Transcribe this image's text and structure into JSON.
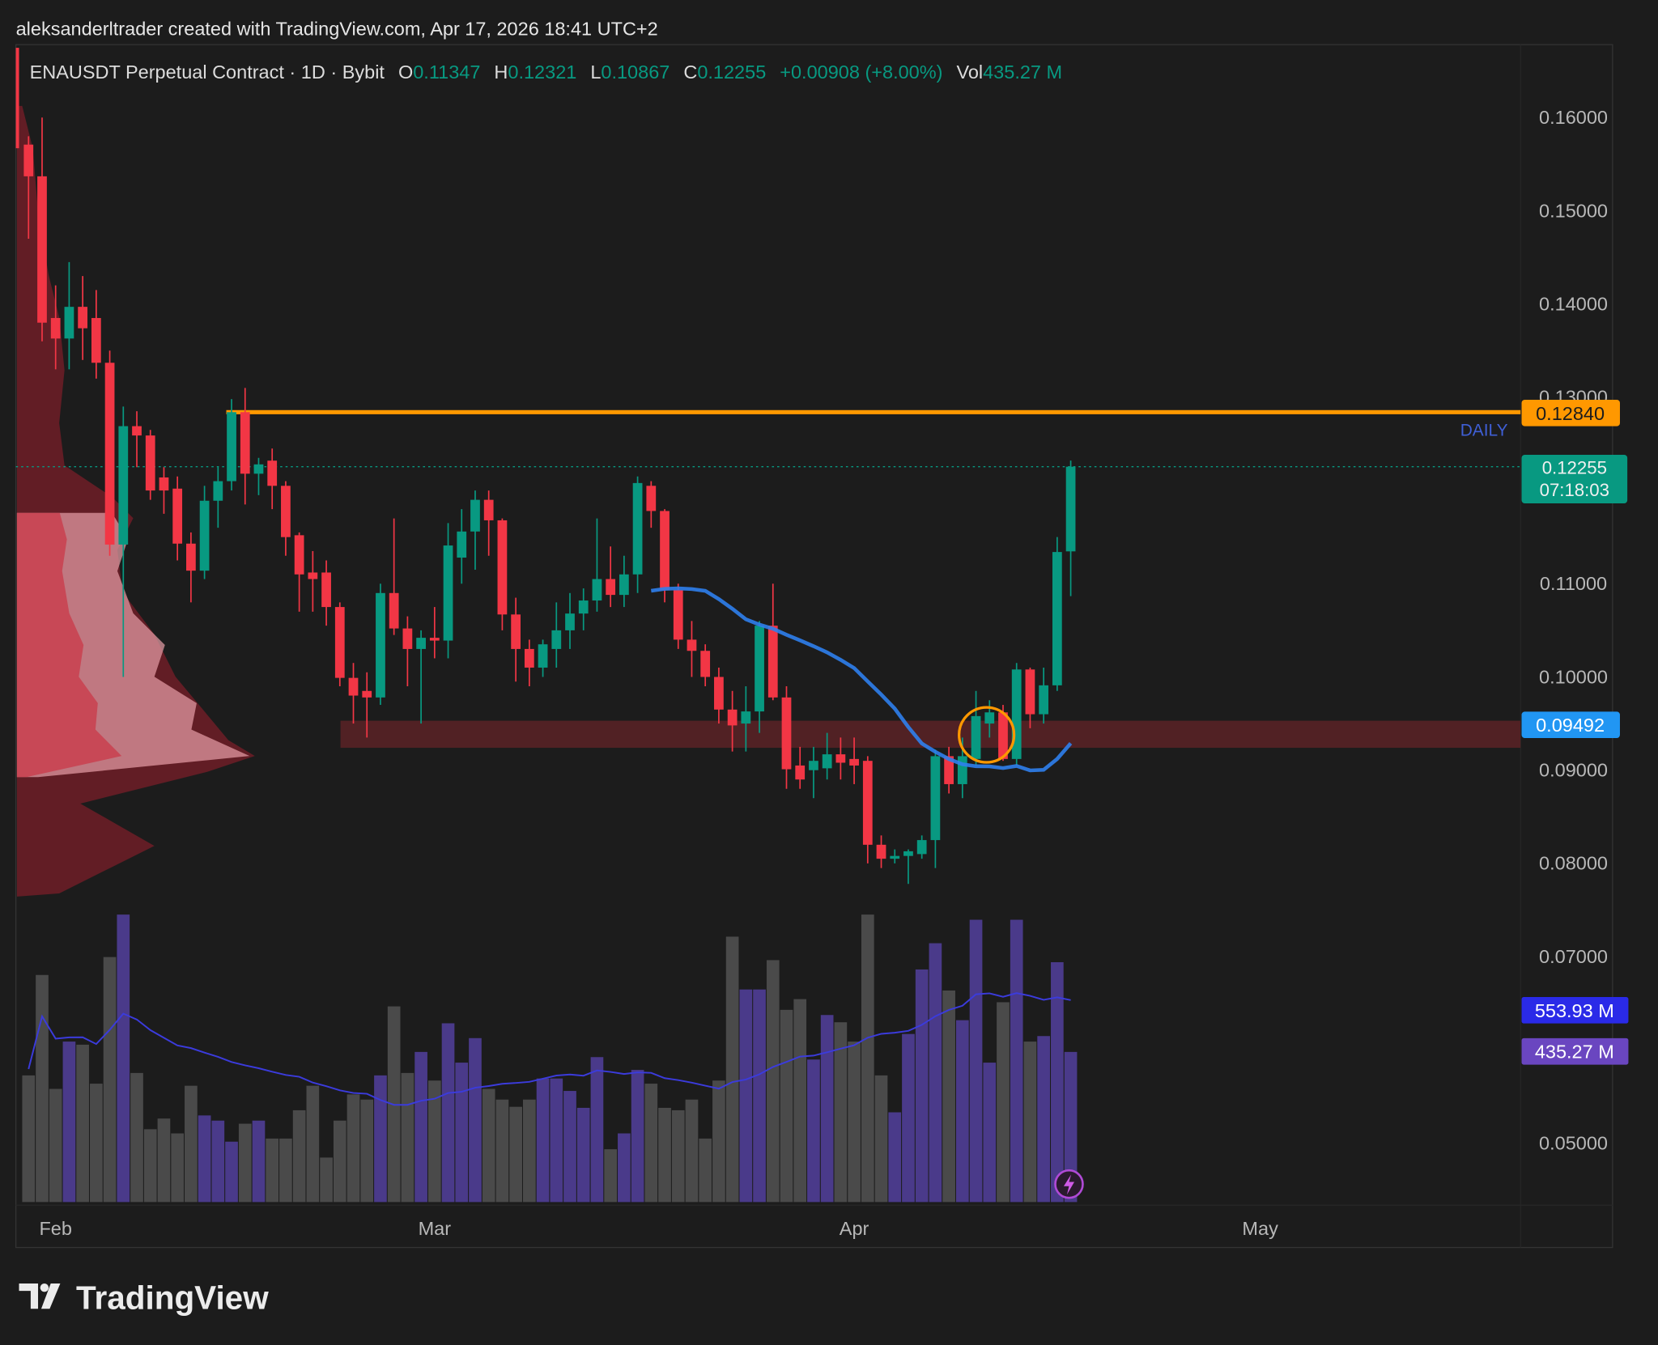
{
  "header": {
    "credit": "aleksanderltrader created with TradingView.com, Apr 17, 2026 18:41 UTC+2",
    "symbol": "ENAUSDT Perpetual Contract · 1D · Bybit",
    "o_label": "O",
    "o": "0.11347",
    "h_label": "H",
    "h": "0.12321",
    "l_label": "L",
    "l": "0.10867",
    "c_label": "C",
    "c": "0.12255",
    "change": "+0.00908 (+8.00%)",
    "vol_label": "Vol",
    "vol": "435.27 M"
  },
  "colors": {
    "up": "#089981",
    "down": "#f23645",
    "volume_up": "#4a3a8a",
    "volume_down": "#4a4a4a",
    "resistance": "#ff9800",
    "ma": "#2f80ed",
    "zone": "#5a2226",
    "volume_ma": "#3b3bdc"
  },
  "labels": {
    "resistance_price": "0.12840",
    "resistance_tag": "DAILY",
    "last_price": "0.12255",
    "countdown": "07:18:03",
    "ma_value": "0.09492",
    "volume_ma_value": "553.93 M",
    "volume_value": "435.27 M",
    "logo": "TradingView"
  },
  "chart_data": {
    "type": "candlestick",
    "price_ticks": [
      "0.16000",
      "0.15000",
      "0.14000",
      "0.13000",
      "0.11000",
      "0.10000",
      "0.09000",
      "0.08000",
      "0.07000",
      "0.05000"
    ],
    "price_tick_values": [
      0.16,
      0.15,
      0.14,
      0.13,
      0.11,
      0.1,
      0.09,
      0.08,
      0.07,
      0.05
    ],
    "time_ticks": [
      "Feb",
      "Mar",
      "Apr",
      "May"
    ],
    "time_tick_dates": [
      "2026-02-01",
      "2026-03-01",
      "2026-04-01",
      "2026-05-01"
    ],
    "first_date": "2026-01-30",
    "resistance_level": 0.1284,
    "support_zone": [
      0.0924,
      0.0953
    ],
    "ohlc": [
      [
        0.1571,
        0.158,
        0.147,
        0.1537
      ],
      [
        0.1537,
        0.16,
        0.136,
        0.138
      ],
      [
        0.1385,
        0.142,
        0.133,
        0.1363
      ],
      [
        0.1363,
        0.1445,
        0.133,
        0.1397
      ],
      [
        0.1397,
        0.143,
        0.134,
        0.1374
      ],
      [
        0.1385,
        0.1415,
        0.132,
        0.1337
      ],
      [
        0.1337,
        0.135,
        0.113,
        0.1142
      ],
      [
        0.1142,
        0.129,
        0.1,
        0.1269
      ],
      [
        0.1269,
        0.1285,
        0.1225,
        0.1259
      ],
      [
        0.1259,
        0.1265,
        0.119,
        0.12
      ],
      [
        0.1214,
        0.1225,
        0.1175,
        0.12
      ],
      [
        0.1202,
        0.1215,
        0.1125,
        0.1143
      ],
      [
        0.1143,
        0.1155,
        0.108,
        0.1114
      ],
      [
        0.1114,
        0.1205,
        0.1105,
        0.1189
      ],
      [
        0.1189,
        0.1225,
        0.116,
        0.121
      ],
      [
        0.121,
        0.1298,
        0.12,
        0.1284
      ],
      [
        0.1284,
        0.131,
        0.1185,
        0.1218
      ],
      [
        0.1218,
        0.1235,
        0.1195,
        0.1228
      ],
      [
        0.1232,
        0.1245,
        0.118,
        0.1205
      ],
      [
        0.1205,
        0.121,
        0.113,
        0.115
      ],
      [
        0.1152,
        0.1155,
        0.107,
        0.111
      ],
      [
        0.1112,
        0.1135,
        0.107,
        0.1105
      ],
      [
        0.1112,
        0.1125,
        0.1055,
        0.1075
      ],
      [
        0.1075,
        0.108,
        0.099,
        0.0999
      ],
      [
        0.0999,
        0.1015,
        0.095,
        0.098
      ],
      [
        0.0985,
        0.1005,
        0.0935,
        0.0978
      ],
      [
        0.0978,
        0.11,
        0.097,
        0.109
      ],
      [
        0.109,
        0.117,
        0.1045,
        0.1052
      ],
      [
        0.1052,
        0.1065,
        0.099,
        0.103
      ],
      [
        0.103,
        0.105,
        0.095,
        0.1042
      ],
      [
        0.1042,
        0.1075,
        0.102,
        0.1039
      ],
      [
        0.1039,
        0.1165,
        0.102,
        0.1141
      ],
      [
        0.1128,
        0.118,
        0.11,
        0.1156
      ],
      [
        0.1156,
        0.12,
        0.1115,
        0.119
      ],
      [
        0.119,
        0.12,
        0.113,
        0.1168
      ],
      [
        0.1168,
        0.117,
        0.105,
        0.1067
      ],
      [
        0.1067,
        0.1085,
        0.0995,
        0.103
      ],
      [
        0.103,
        0.104,
        0.099,
        0.101
      ],
      [
        0.101,
        0.104,
        0.1,
        0.1035
      ],
      [
        0.103,
        0.108,
        0.101,
        0.105
      ],
      [
        0.105,
        0.109,
        0.103,
        0.1068
      ],
      [
        0.1068,
        0.1095,
        0.105,
        0.1082
      ],
      [
        0.1082,
        0.117,
        0.107,
        0.1105
      ],
      [
        0.1105,
        0.114,
        0.1075,
        0.1088
      ],
      [
        0.1088,
        0.113,
        0.1075,
        0.111
      ],
      [
        0.111,
        0.1215,
        0.109,
        0.1208
      ],
      [
        0.1205,
        0.121,
        0.116,
        0.1178
      ],
      [
        0.1178,
        0.118,
        0.108,
        0.1093
      ],
      [
        0.1093,
        0.11,
        0.103,
        0.104
      ],
      [
        0.104,
        0.106,
        0.1,
        0.1028
      ],
      [
        0.1028,
        0.1035,
        0.099,
        0.1
      ],
      [
        0.1,
        0.101,
        0.095,
        0.0965
      ],
      [
        0.0965,
        0.0985,
        0.092,
        0.0948
      ],
      [
        0.095,
        0.099,
        0.092,
        0.0963
      ],
      [
        0.0963,
        0.106,
        0.094,
        0.1055
      ],
      [
        0.1055,
        0.11,
        0.0975,
        0.0978
      ],
      [
        0.0978,
        0.099,
        0.088,
        0.0901
      ],
      [
        0.0905,
        0.0925,
        0.088,
        0.089
      ],
      [
        0.09,
        0.0925,
        0.087,
        0.091
      ],
      [
        0.0902,
        0.094,
        0.089,
        0.0917
      ],
      [
        0.0917,
        0.0935,
        0.089,
        0.0908
      ],
      [
        0.0912,
        0.0935,
        0.0885,
        0.0905
      ],
      [
        0.091,
        0.0915,
        0.08,
        0.082
      ],
      [
        0.082,
        0.083,
        0.0795,
        0.0805
      ],
      [
        0.0805,
        0.0815,
        0.08,
        0.0808
      ],
      [
        0.0808,
        0.0815,
        0.0778,
        0.0813
      ],
      [
        0.081,
        0.083,
        0.0805,
        0.0825
      ],
      [
        0.0825,
        0.0922,
        0.0795,
        0.0915
      ],
      [
        0.0915,
        0.0925,
        0.0875,
        0.0885
      ],
      [
        0.0885,
        0.0935,
        0.087,
        0.0915
      ],
      [
        0.0912,
        0.0985,
        0.0905,
        0.0958
      ],
      [
        0.095,
        0.0975,
        0.0935,
        0.0962
      ],
      [
        0.0962,
        0.097,
        0.091,
        0.0912
      ],
      [
        0.0912,
        0.1015,
        0.0905,
        0.1008
      ],
      [
        0.1008,
        0.101,
        0.0945,
        0.096
      ],
      [
        0.096,
        0.101,
        0.095,
        0.0991
      ],
      [
        0.0991,
        0.115,
        0.0985,
        0.1134
      ],
      [
        0.11347,
        0.12321,
        0.10867,
        0.12255
      ]
    ],
    "volume_millions": [
      367,
      658,
      328,
      465,
      456,
      343,
      710,
      833,
      374,
      211,
      242,
      199,
      337,
      251,
      236,
      175,
      227,
      236,
      184,
      184,
      266,
      337,
      129,
      236,
      312,
      297,
      367,
      567,
      374,
      435,
      352,
      518,
      404,
      475,
      328,
      297,
      276,
      297,
      358,
      358,
      322,
      273,
      420,
      153,
      199,
      383,
      343,
      273,
      266,
      297,
      184,
      352,
      769,
      616,
      616,
      701,
      557,
      588,
      413,
      542,
      521,
      465,
      833,
      367,
      260,
      487,
      674,
      750,
      613,
      527,
      818,
      404,
      579,
      818,
      465,
      481,
      695,
      435
    ]
  }
}
